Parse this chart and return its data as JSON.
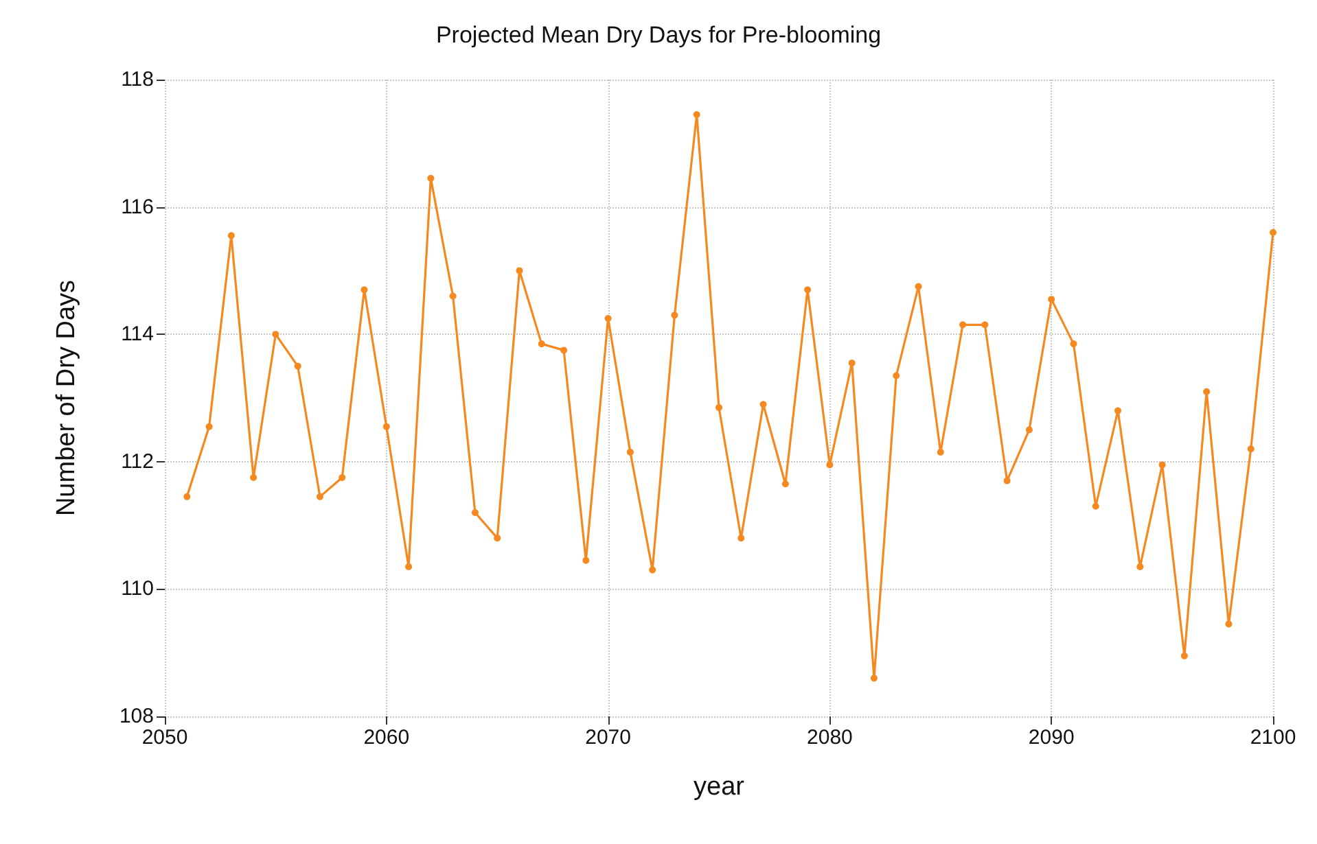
{
  "chart_data": {
    "type": "line",
    "title": "Projected Mean Dry Days for Pre-blooming",
    "xlabel": "year",
    "ylabel": "Number of Dry Days",
    "x": [
      2051,
      2052,
      2053,
      2054,
      2055,
      2056,
      2057,
      2058,
      2059,
      2060,
      2061,
      2062,
      2063,
      2064,
      2065,
      2066,
      2067,
      2068,
      2069,
      2070,
      2071,
      2072,
      2073,
      2074,
      2075,
      2076,
      2077,
      2078,
      2079,
      2080,
      2081,
      2082,
      2083,
      2084,
      2085,
      2086,
      2087,
      2088,
      2089,
      2090,
      2091,
      2092,
      2093,
      2094,
      2095,
      2096,
      2097,
      2098,
      2099,
      2100
    ],
    "series": [
      {
        "color": "#f5891f",
        "values": [
          111.45,
          112.55,
          115.55,
          111.75,
          114.0,
          113.5,
          111.45,
          111.75,
          114.7,
          112.55,
          110.35,
          116.45,
          114.6,
          111.2,
          110.8,
          115.0,
          113.85,
          113.75,
          110.45,
          114.25,
          112.15,
          110.3,
          114.3,
          117.45,
          112.85,
          110.8,
          112.9,
          111.65,
          114.7,
          111.95,
          113.55,
          108.6,
          113.35,
          114.75,
          112.15,
          114.15,
          114.15,
          111.7,
          112.5,
          114.55,
          113.85,
          111.3,
          112.8,
          110.35,
          111.95,
          108.95,
          113.1,
          109.45,
          112.2,
          115.6
        ]
      }
    ],
    "xlim": [
      2050,
      2100
    ],
    "xticks": [
      2050,
      2060,
      2070,
      2080,
      2090,
      2100
    ],
    "ylim": [
      108,
      118
    ],
    "yticks": [
      108,
      110,
      112,
      114,
      116,
      118
    ],
    "grid": true,
    "marker": "circle",
    "line_style": "solid"
  }
}
